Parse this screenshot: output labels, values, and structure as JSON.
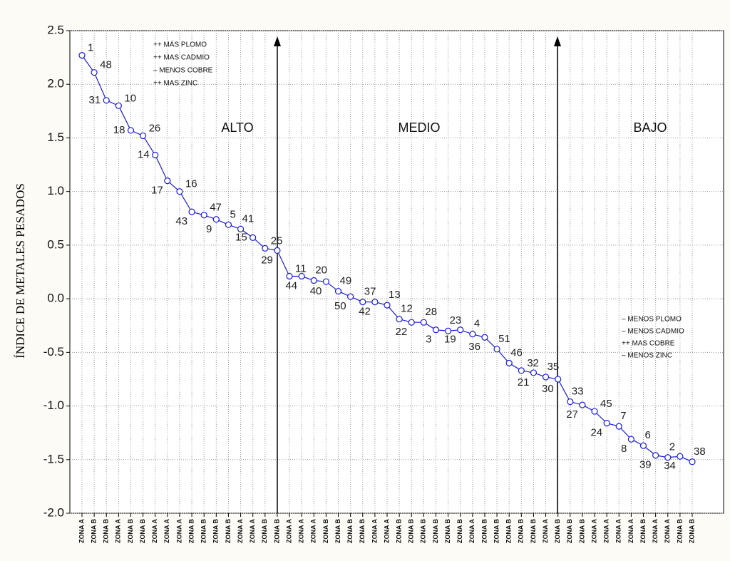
{
  "chart_data": {
    "type": "line",
    "y_label": "ÍNDICE DE METALES PESADOS",
    "categories": [
      "ZONA A",
      "ZONA B",
      "ZONA B",
      "ZONA A",
      "ZONA B",
      "ZONA B",
      "ZONA A",
      "ZONA A",
      "ZONA A",
      "ZONA B",
      "ZONA B",
      "ZONA B",
      "ZONA B",
      "ZONA A",
      "ZONA A",
      "ZONA B",
      "ZONA B",
      "ZONA A",
      "ZONA A",
      "ZONA A",
      "ZONA B",
      "ZONA B",
      "ZONA B",
      "ZONA B",
      "ZONA A",
      "ZONA A",
      "ZONA B",
      "ZONA B",
      "ZONA B",
      "ZONA B",
      "ZONA B",
      "ZONA B",
      "ZONA A",
      "ZONA B",
      "ZONA B",
      "ZONA B",
      "ZONA B",
      "ZONA B",
      "ZONA A",
      "ZONA B",
      "ZONA B",
      "ZONA B",
      "ZONA A",
      "ZONA A",
      "ZONA A",
      "ZONA A",
      "ZONA B",
      "ZONA A",
      "ZONA A",
      "ZONA B",
      "ZONA B"
    ],
    "point_labels": [
      "1",
      "48",
      "31",
      "10",
      "18",
      "26",
      "14",
      "17",
      "16",
      "43",
      "47",
      "9",
      "5",
      "41",
      "15",
      "25",
      "29",
      "11",
      "44",
      "20",
      "40",
      "49",
      "50",
      "37",
      "42",
      "13",
      "12",
      "22",
      "28",
      "3",
      "23",
      "19",
      "4",
      "36",
      "51",
      "46",
      "32",
      "21",
      "35",
      "30",
      "33",
      "27",
      "45",
      "24",
      "7",
      "8",
      "6",
      "39",
      "2",
      "34",
      "38"
    ],
    "series": [
      {
        "color": "#1a1adc",
        "values": [
          2.27,
          2.11,
          1.85,
          1.8,
          1.57,
          1.52,
          1.34,
          1.1,
          1.0,
          0.81,
          0.78,
          0.74,
          0.69,
          0.65,
          0.57,
          0.47,
          0.45,
          0.21,
          0.21,
          0.17,
          0.16,
          0.07,
          0.02,
          -0.03,
          -0.03,
          -0.06,
          -0.19,
          -0.22,
          -0.22,
          -0.29,
          -0.3,
          -0.29,
          -0.33,
          -0.36,
          -0.47,
          -0.6,
          -0.67,
          -0.69,
          -0.73,
          -0.75,
          -0.96,
          -0.99,
          -1.05,
          -1.16,
          -1.19,
          -1.31,
          -1.37,
          -1.46,
          -1.48,
          -1.47,
          -1.52
        ]
      }
    ],
    "ylim": [
      -2,
      2.5
    ],
    "yticks": [
      2.5,
      {
        "value": 2,
        "label": "2.0"
      },
      1.5,
      {
        "value": 1,
        "label": "1.0"
      },
      0.5,
      {
        "value": 0,
        "label": "0.0"
      },
      -0.5,
      {
        "value": -1,
        "label": "-1.0"
      },
      -1.5,
      {
        "value": -2,
        "label": "-2.0"
      }
    ],
    "grid": true,
    "zones": [
      "ALTO",
      "MEDIO",
      "BAJO"
    ],
    "notes_high": [
      "++ MÁS PLOMO",
      "++ MAS CADMIO",
      "–   MENOS COBRE",
      "++ MAS ZINC"
    ],
    "notes_low": [
      "–   MENOS PLOMO",
      "–   MENOS CADMIO",
      "++ MAS COBRE",
      "–   MENOS ZINC"
    ]
  }
}
